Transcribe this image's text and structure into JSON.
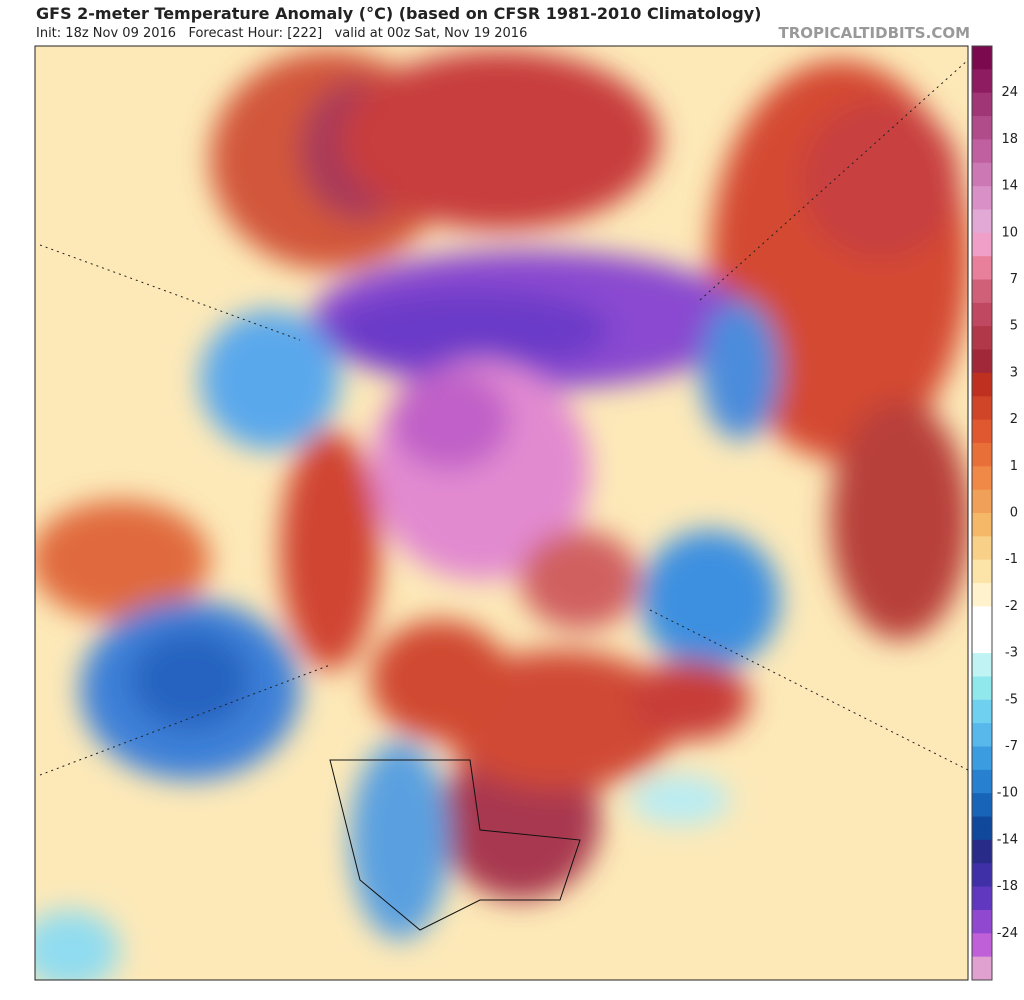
{
  "header": {
    "title": "GFS 2-meter Temperature Anomaly (°C) (based on CFSR 1981-2010 Climatology)",
    "subtitle": "Init: 18z Nov 09 2016   Forecast Hour: [222]   valid at 00z Sat, Nov 19 2016",
    "source": "TROPICALTIDBITS.COM"
  },
  "colorbar": {
    "labels": [
      "24",
      "18",
      "14",
      "10",
      "7",
      "5",
      "3",
      "2",
      "1",
      "0",
      "-1",
      "-2",
      "-3",
      "-5",
      "-7",
      "-10",
      "-14",
      "-18",
      "-24"
    ],
    "colors": [
      "#7a0a4d",
      "#8e1c60",
      "#a03676",
      "#b04c8a",
      "#c060a0",
      "#cc78b4",
      "#d890c6",
      "#e2a8d6",
      "#f0a0c8",
      "#e8809c",
      "#d06078",
      "#c04860",
      "#b03848",
      "#a02838",
      "#c03020",
      "#d04428",
      "#e05830",
      "#e87038",
      "#f08848",
      "#f0a058",
      "#f4b868",
      "#f8d088",
      "#fce4a8",
      "#fff2cc",
      "#ffffff",
      "#ffffff",
      "#c0f4f4",
      "#90e8ec",
      "#70d0f0",
      "#58b8ec",
      "#3c9ce0",
      "#2880d0",
      "#1864b8",
      "#10489c",
      "#282c88",
      "#4030a8",
      "#6038c0",
      "#9048d0",
      "#c060d8",
      "#e0a0d0"
    ]
  }
}
